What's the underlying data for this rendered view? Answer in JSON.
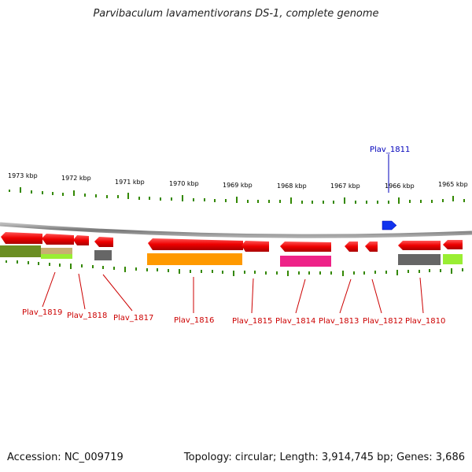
{
  "title": "Parvibaculum lavamentivorans DS-1, complete genome",
  "footer": {
    "accession": "Accession: NC_009719",
    "summary": "Topology: circular; Length: 3,914,745 bp; Genes: 3,686"
  },
  "kbp_labels": [
    "1973 kbp",
    "1972 kbp",
    "1971 kbp",
    "1970 kbp",
    "1969 kbp",
    "1968 kbp",
    "1967 kbp",
    "1966 kbp",
    "1965 kbp"
  ],
  "genes": [
    {
      "name": "Plav_1819",
      "color": "#cc0000"
    },
    {
      "name": "Plav_1818",
      "color": "#cc0000"
    },
    {
      "name": "Plav_1817",
      "color": "#cc0000"
    },
    {
      "name": "Plav_1816",
      "color": "#cc0000"
    },
    {
      "name": "Plav_1815",
      "color": "#cc0000"
    },
    {
      "name": "Plav_1814",
      "color": "#cc0000"
    },
    {
      "name": "Plav_1813",
      "color": "#cc0000"
    },
    {
      "name": "Plav_1812",
      "color": "#cc0000"
    },
    {
      "name": "Plav_1810",
      "color": "#cc0000"
    },
    {
      "name": "Plav_1811",
      "color": "#0000bb"
    }
  ],
  "colors": {
    "gene_red": "#ee1111",
    "gene_blue": "#1133ee",
    "track_gray": "#888888",
    "tick_green": "#338800",
    "olive": "#6b8e23",
    "tan": "#c8b070",
    "lime": "#99ee33",
    "gray_box": "#666666",
    "orange": "#ff9900",
    "magenta": "#ee2288"
  }
}
